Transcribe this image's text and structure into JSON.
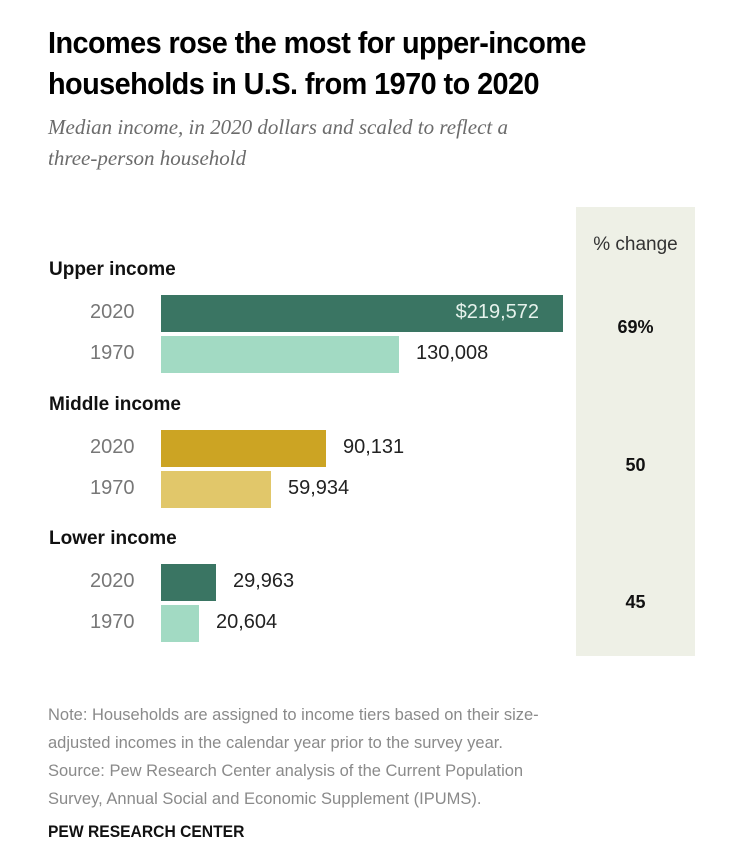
{
  "header": {
    "title_lines": [
      "Incomes rose the most for upper-income",
      "households in U.S. from 1970 to 2020"
    ],
    "subtitle_lines": [
      "Median income, in 2020 dollars and scaled to reflect a",
      "three-person household"
    ]
  },
  "pct_change_header": "% change",
  "colors": {
    "upper_2020": "#3a7563",
    "upper_1970": "#a2dac3",
    "middle_2020": "#cca423",
    "middle_1970": "#e1c76a",
    "lower_2020": "#3a7563",
    "lower_1970": "#a2dac3",
    "panel_bg": "#eef0e6"
  },
  "chart_data": {
    "type": "bar",
    "orientation": "horizontal",
    "title": "Incomes rose the most for upper-income households in U.S. from 1970 to 2020",
    "subtitle": "Median income, in 2020 dollars and scaled to reflect a three-person household",
    "xlabel": "",
    "ylabel": "",
    "xlim": [
      0,
      219572
    ],
    "grid": false,
    "groups": [
      {
        "name": "Upper income",
        "pct_change_label": "69%",
        "pct_change": 69,
        "bars": [
          {
            "year": "2020",
            "value": 219572,
            "label": "$219,572",
            "label_inside": true
          },
          {
            "year": "1970",
            "value": 130008,
            "label": "130,008",
            "label_inside": false
          }
        ]
      },
      {
        "name": "Middle income",
        "pct_change_label": "50",
        "pct_change": 50,
        "bars": [
          {
            "year": "2020",
            "value": 90131,
            "label": "90,131",
            "label_inside": false
          },
          {
            "year": "1970",
            "value": 59934,
            "label": "59,934",
            "label_inside": false
          }
        ]
      },
      {
        "name": "Lower income",
        "pct_change_label": "45",
        "pct_change": 45,
        "bars": [
          {
            "year": "2020",
            "value": 29963,
            "label": "29,963",
            "label_inside": false
          },
          {
            "year": "1970",
            "value": 20604,
            "label": "20,604",
            "label_inside": false
          }
        ]
      }
    ]
  },
  "footer": {
    "note_lines": [
      "Note: Households are assigned to income tiers based on their size-",
      "adjusted incomes in the calendar year prior to the survey year.",
      "Source: Pew Research Center analysis of the Current Population",
      "Survey, Annual Social and Economic Supplement (IPUMS)."
    ],
    "brand": "PEW RESEARCH CENTER"
  }
}
